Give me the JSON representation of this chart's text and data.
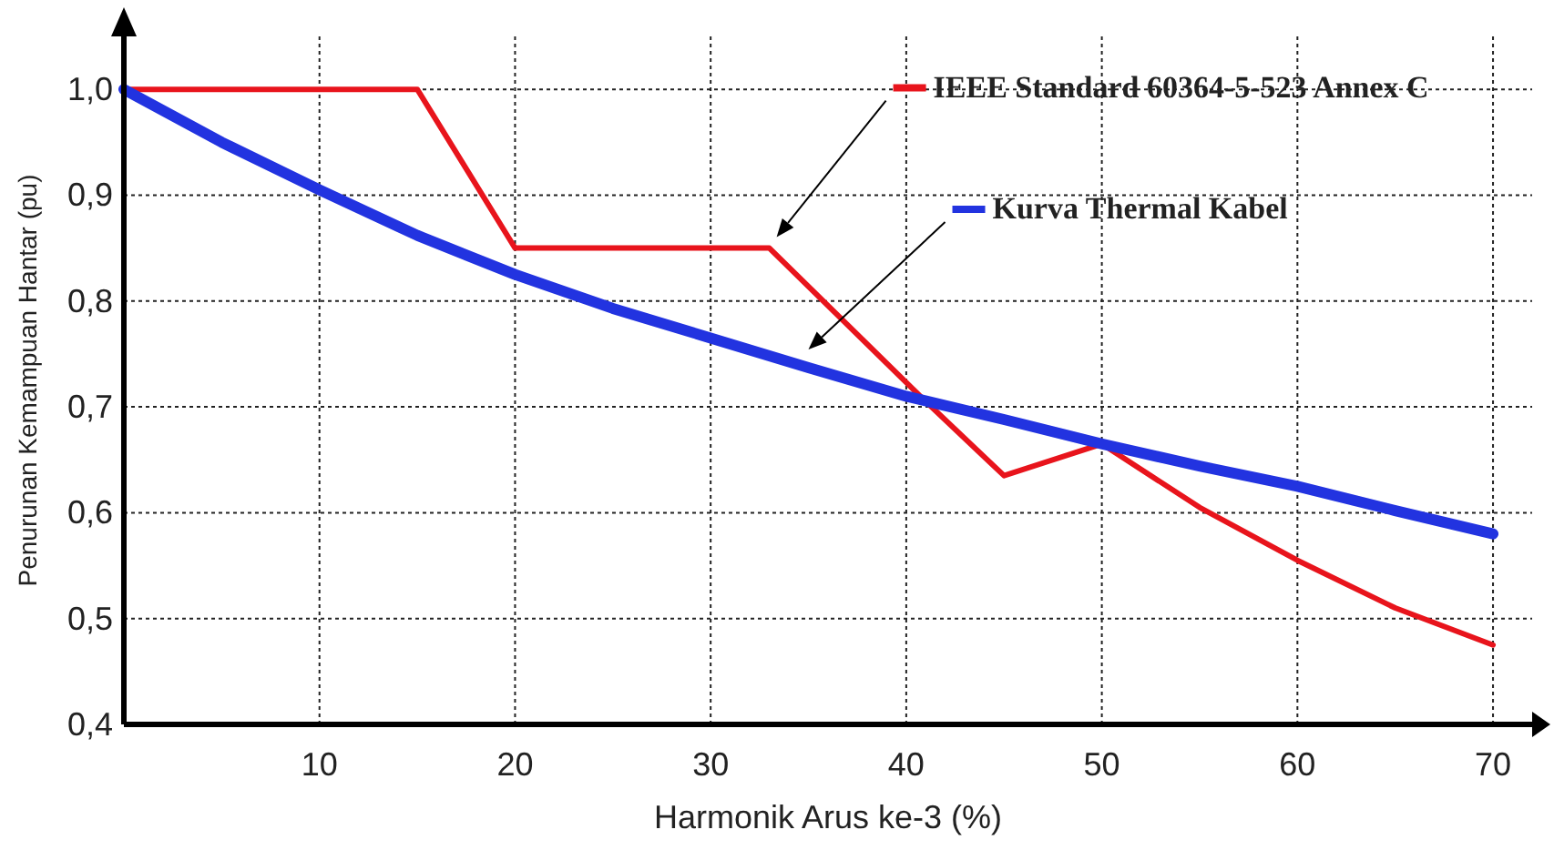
{
  "chart_data": {
    "type": "line",
    "xlabel": "Harmonik Arus ke-3 (%)",
    "ylabel": "Penurunan Kemampuan Hantar  (pu)",
    "xlim": [
      0,
      72
    ],
    "ylim": [
      0.4,
      1.05
    ],
    "xticks": [
      10,
      20,
      30,
      40,
      50,
      60,
      70
    ],
    "yticks": [
      {
        "value": 0.4,
        "label": "0,4"
      },
      {
        "value": 0.5,
        "label": "0,5"
      },
      {
        "value": 0.6,
        "label": "0,6"
      },
      {
        "value": 0.7,
        "label": "0,7"
      },
      {
        "value": 0.8,
        "label": "0,8"
      },
      {
        "value": 0.9,
        "label": "0,9"
      },
      {
        "value": 1.0,
        "label": "1,0"
      }
    ],
    "grid": true,
    "legend": "top right",
    "line_style": "solid",
    "marker": "none",
    "series": [
      {
        "name": "IEEE Standard 60364-5-523 Annex C",
        "color": "#e8141c",
        "x": [
          0,
          15,
          20,
          33,
          41,
          45,
          50,
          55,
          60,
          65,
          70
        ],
        "values": [
          1.0,
          1.0,
          0.85,
          0.85,
          0.705,
          0.635,
          0.665,
          0.605,
          0.555,
          0.51,
          0.475
        ]
      },
      {
        "name": "Kurva Thermal Kabel",
        "color": "#2233e0",
        "x": [
          0,
          5,
          10,
          15,
          20,
          25,
          30,
          35,
          40,
          45,
          50,
          55,
          60,
          65,
          70
        ],
        "values": [
          1.0,
          0.95,
          0.905,
          0.862,
          0.825,
          0.793,
          0.765,
          0.737,
          0.71,
          0.688,
          0.665,
          0.644,
          0.625,
          0.602,
          0.58
        ]
      }
    ]
  }
}
